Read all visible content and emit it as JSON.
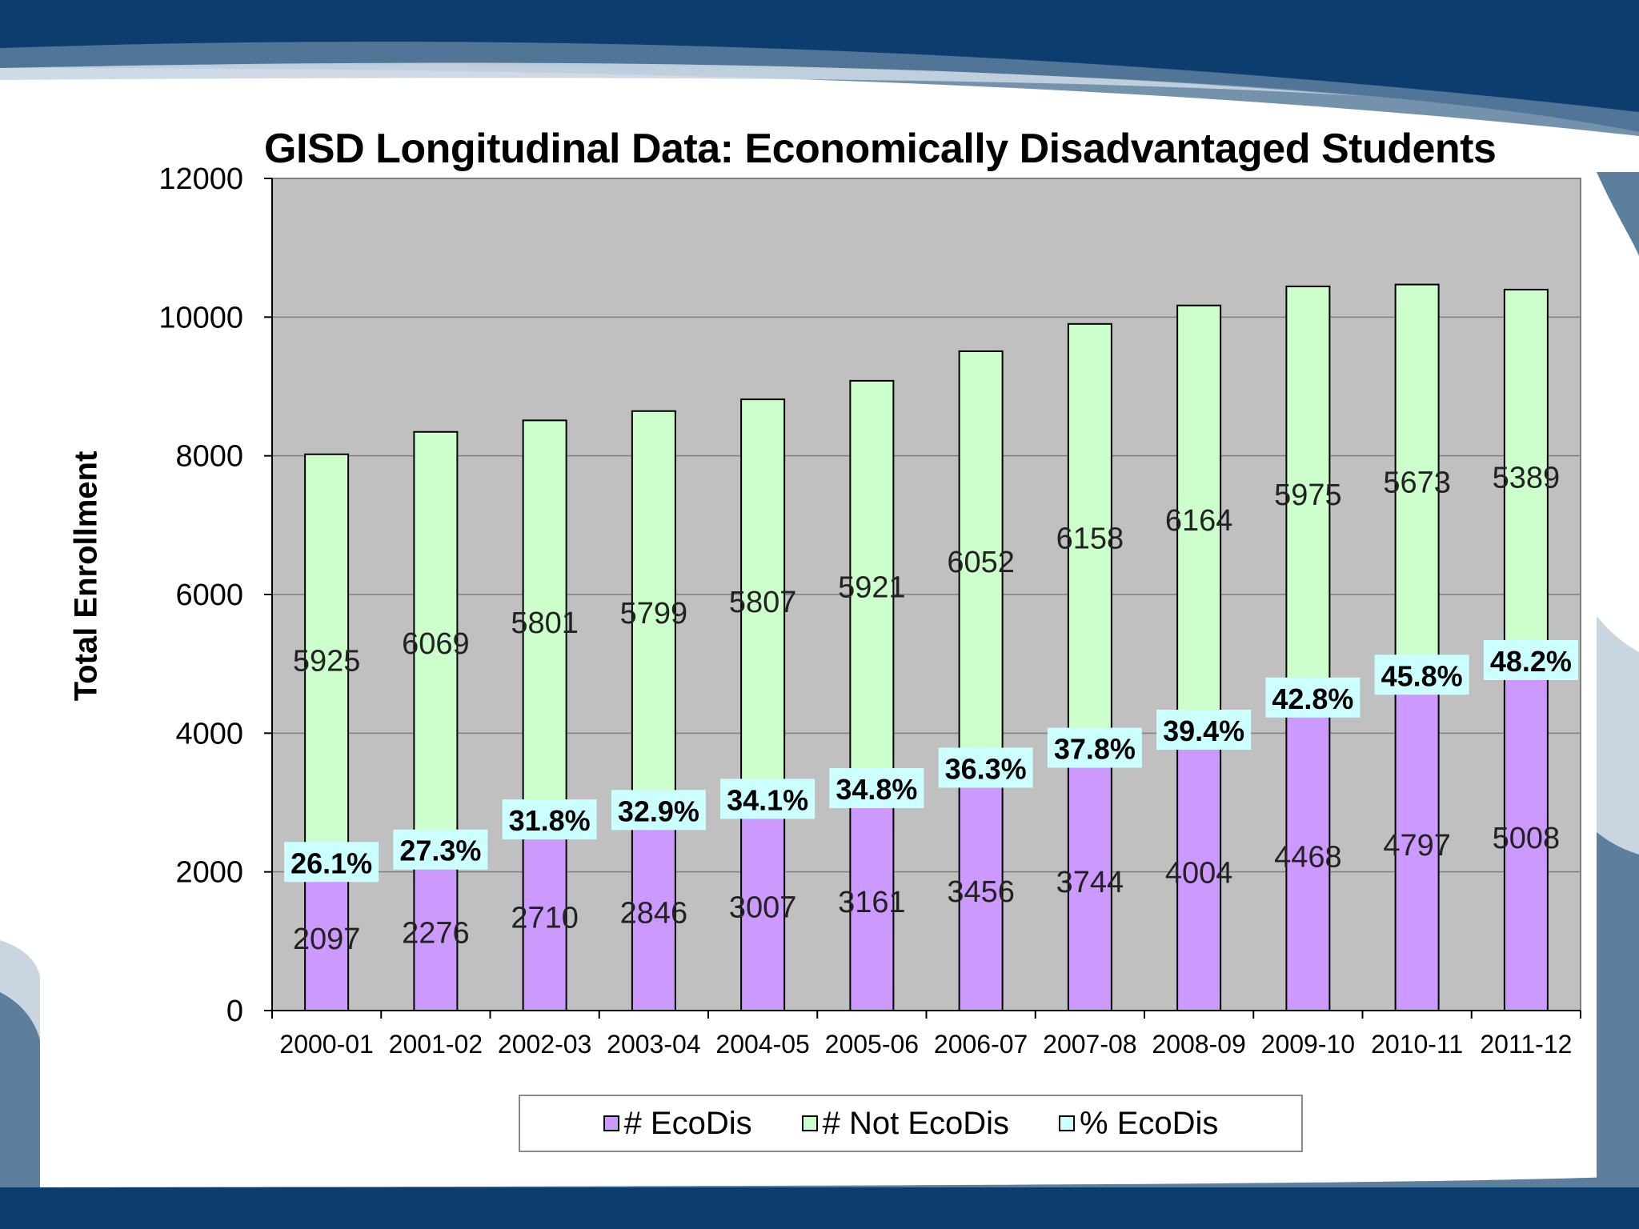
{
  "slide": {
    "bg_dark": "#0b3d6e",
    "bg_mid": "#5d7f9e",
    "bg_light": "#c9d6e2"
  },
  "chart_data": {
    "type": "bar",
    "stacked": true,
    "title": "GISD Longitudinal Data: Economically Disadvantaged Students",
    "ylabel": "Total Enrollment",
    "xlabel": "",
    "ylim": [
      0,
      12000
    ],
    "yticks": [
      0,
      2000,
      4000,
      6000,
      8000,
      10000,
      12000
    ],
    "categories": [
      "2000-01",
      "2001-02",
      "2002-03",
      "2003-04",
      "2004-05",
      "2005-06",
      "2006-07",
      "2007-08",
      "2008-09",
      "2009-10",
      "2010-11",
      "2011-12"
    ],
    "series": [
      {
        "name": "# EcoDis",
        "color": "#cc99ff",
        "values": [
          2097,
          2276,
          2710,
          2846,
          3007,
          3161,
          3456,
          3744,
          4004,
          4468,
          4797,
          5008
        ]
      },
      {
        "name": "# Not EcoDis",
        "color": "#ccffcc",
        "values": [
          5925,
          6069,
          5801,
          5799,
          5807,
          5921,
          6052,
          6158,
          6164,
          5975,
          5673,
          5389
        ]
      },
      {
        "name": "% EcoDis",
        "color": "#ccffff",
        "values": [
          26.1,
          27.3,
          31.8,
          32.9,
          34.1,
          34.8,
          36.3,
          37.8,
          39.4,
          42.8,
          45.8,
          48.2
        ],
        "labels": [
          "26.1%",
          "27.3%",
          "31.8%",
          "32.9%",
          "34.1%",
          "34.8%",
          "36.3%",
          "37.8%",
          "39.4%",
          "42.8%",
          "45.8%",
          "48.2%"
        ]
      }
    ],
    "plot_background": "#c0c0c0",
    "grid": true,
    "legend_position": "bottom"
  }
}
